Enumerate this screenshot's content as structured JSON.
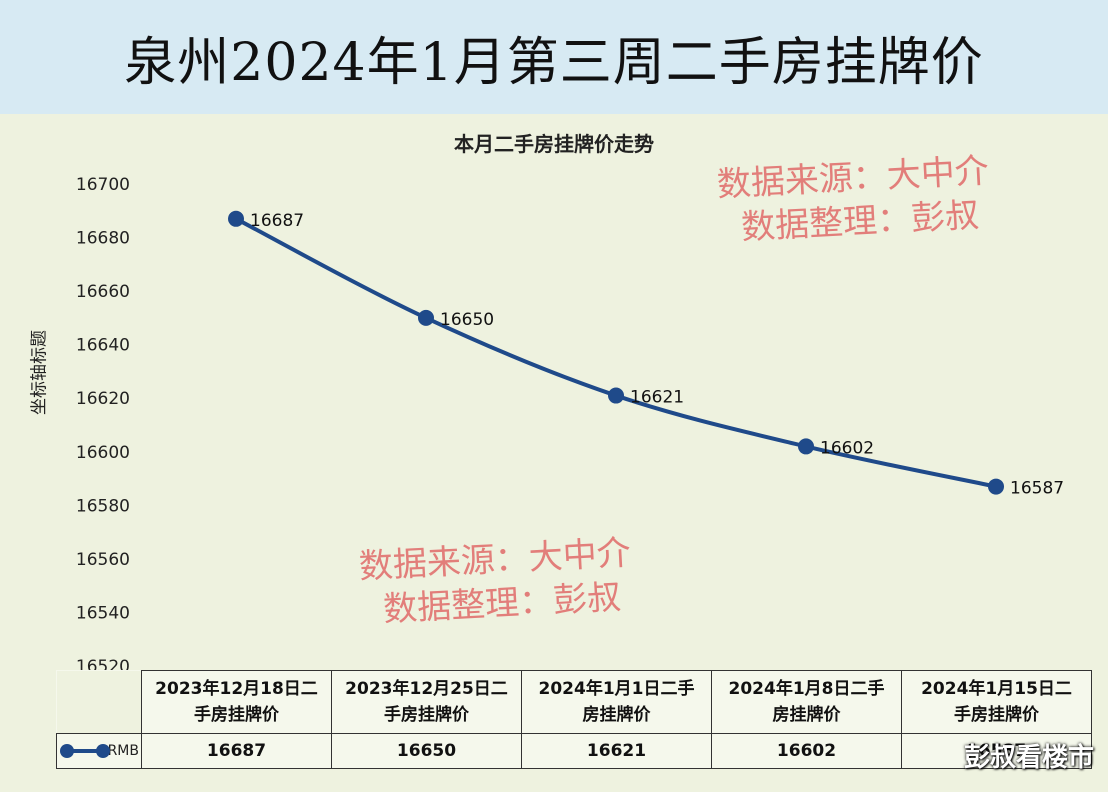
{
  "banner_title": "泉州2024年1月第三周二手房挂牌价",
  "watermarks": [
    {
      "line1": "数据来源：大中介",
      "line2": "数据整理：彭叔"
    },
    {
      "line1": "数据来源：大中介",
      "line2": "数据整理：彭叔"
    }
  ],
  "brand": "彭叔看楼市",
  "chart_data": {
    "type": "line",
    "title": "本月二手房挂牌价走势",
    "ylabel": "坐标轴标题",
    "xlabel": "",
    "ylim": [
      16520,
      16700
    ],
    "yticks": [
      16700,
      16680,
      16660,
      16640,
      16620,
      16600,
      16580,
      16560,
      16540,
      16520
    ],
    "categories": [
      [
        "2023年12月18日二",
        "手房挂牌价"
      ],
      [
        "2023年12月25日二",
        "手房挂牌价"
      ],
      [
        "2024年1月1日二手",
        "房挂牌价"
      ],
      [
        "2024年1月8日二手",
        "房挂牌价"
      ],
      [
        "2024年1月15日二",
        "手房挂牌价"
      ]
    ],
    "series": [
      {
        "name": "RMB",
        "color": "#1f4a8a",
        "values": [
          16687,
          16650,
          16621,
          16602,
          16587
        ]
      }
    ],
    "data_labels": true,
    "grid": false,
    "legend": "data-table"
  }
}
